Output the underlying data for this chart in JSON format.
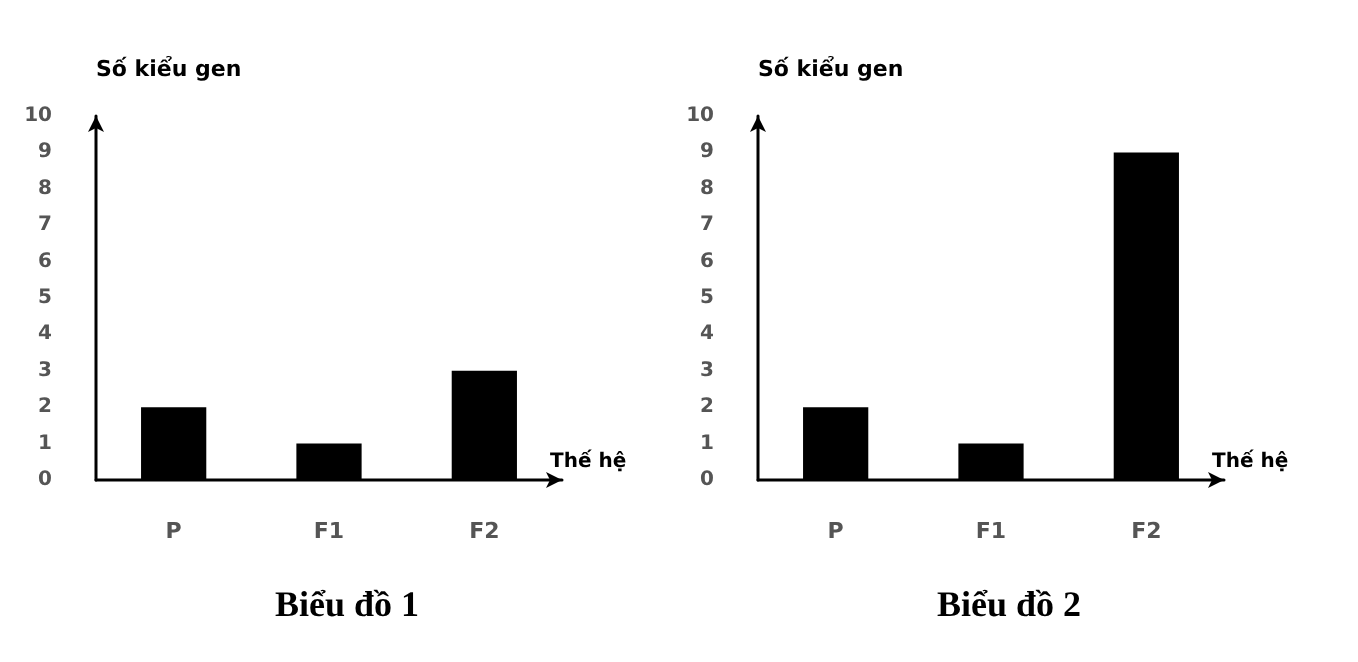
{
  "chart_data": [
    {
      "type": "bar",
      "title": "Biểu đồ 1",
      "ylabel": "Số kiểu gen",
      "xlabel": "Thế hệ",
      "categories": [
        "P",
        "F1",
        "F2"
      ],
      "values": [
        2,
        1,
        3
      ],
      "color": "#000000",
      "ylim": [
        0,
        10
      ],
      "yticks": [
        0,
        1,
        2,
        3,
        4,
        5,
        6,
        7,
        8,
        9,
        10
      ],
      "grid": false
    },
    {
      "type": "bar",
      "title": "Biểu đồ 2",
      "ylabel": "Số kiểu gen",
      "xlabel": "Thế hệ",
      "categories": [
        "P",
        "F1",
        "F2"
      ],
      "values": [
        2,
        1,
        9
      ],
      "color": "#000000",
      "ylim": [
        0,
        10
      ],
      "yticks": [
        0,
        1,
        2,
        3,
        4,
        5,
        6,
        7,
        8,
        9,
        10
      ],
      "grid": false
    }
  ]
}
